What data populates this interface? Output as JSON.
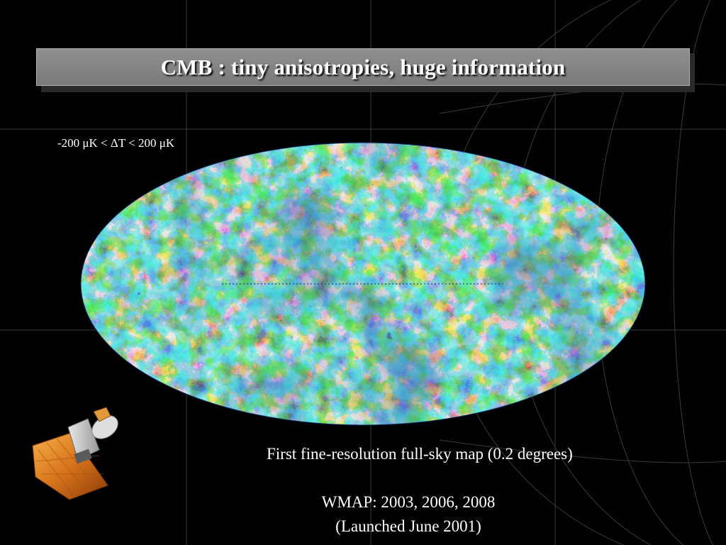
{
  "slide": {
    "title": "CMB : tiny anisotropies, huge information",
    "temperature_range": "-200 μK < ΔT < 200 μK",
    "caption_map": "First fine-resolution full-sky map (0.2 degrees)",
    "caption_mission": "WMAP: 2003, 2006, 2008",
    "caption_launch": "(Launched June 2001)"
  },
  "colors": {
    "background": "#000000",
    "title_bar": "#808080",
    "map_base": "#1f7fbf",
    "map_cold": "#0a1f6e",
    "map_warm": "#e8d81a",
    "map_hot": "#d8202a"
  },
  "images": {
    "sky_map": "mollweide-all-sky-cmb-map",
    "satellite": "wmap-satellite-icon"
  }
}
